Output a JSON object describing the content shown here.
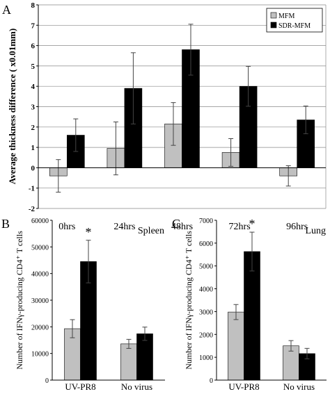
{
  "colors": {
    "mfm": "#c0c0c0",
    "sdr": "#000000",
    "axis": "#000000",
    "grid": "#888888"
  },
  "chart_data": [
    {
      "panel": "A",
      "type": "bar",
      "ylabel": "Average thickness difference ( x0.01mm)",
      "ylim": [
        -2,
        8
      ],
      "yticks": [
        "-2",
        "-1",
        "0",
        "1",
        "2",
        "3",
        "4",
        "5",
        "6",
        "7",
        "8"
      ],
      "grid": true,
      "legend": {
        "placement": "top-right",
        "entries": [
          "MFM",
          "SDR-MFM"
        ]
      },
      "categories": [
        "0hrs",
        "24hrs",
        "48hrs",
        "72hrs",
        "96hrs"
      ],
      "series": [
        {
          "name": "MFM",
          "values": [
            -0.4,
            0.95,
            2.15,
            0.75,
            -0.4
          ],
          "errors": [
            0.8,
            1.3,
            1.05,
            0.68,
            0.5
          ]
        },
        {
          "name": "SDR-MFM",
          "values": [
            1.6,
            3.9,
            5.8,
            4.0,
            2.35
          ],
          "errors": [
            0.8,
            1.75,
            1.25,
            0.98,
            0.68
          ]
        }
      ]
    },
    {
      "panel": "B",
      "type": "bar",
      "ylabel": "Number of IFNγ-producing CD4⁺ T cells",
      "annotation": "Spleen",
      "ylim": [
        0,
        60000
      ],
      "yticks": [
        "0",
        "10000",
        "20000",
        "30000",
        "40000",
        "50000",
        "60000"
      ],
      "categories": [
        "UV-PR8",
        "No virus"
      ],
      "significance": [
        {
          "category": "UV-PR8",
          "mark": "*"
        }
      ],
      "series": [
        {
          "name": "MFM",
          "values": [
            19300,
            13600
          ],
          "errors": [
            3400,
            1700
          ]
        },
        {
          "name": "SDR-MFM",
          "values": [
            44500,
            17400
          ],
          "errors": [
            8000,
            2500
          ]
        }
      ]
    },
    {
      "panel": "C",
      "type": "bar",
      "ylabel": "Number of IFNγ-producing CD4⁺ T cells",
      "annotation": "Lung",
      "ylim": [
        0,
        7000
      ],
      "yticks": [
        "0",
        "1000",
        "2000",
        "3000",
        "4000",
        "5000",
        "6000",
        "7000"
      ],
      "categories": [
        "UV-PR8",
        "No virus"
      ],
      "significance": [
        {
          "category": "UV-PR8",
          "mark": "*"
        }
      ],
      "series": [
        {
          "name": "MFM",
          "values": [
            2980,
            1500
          ],
          "errors": [
            330,
            230
          ]
        },
        {
          "name": "SDR-MFM",
          "values": [
            5630,
            1160
          ],
          "errors": [
            850,
            230
          ]
        }
      ]
    }
  ]
}
